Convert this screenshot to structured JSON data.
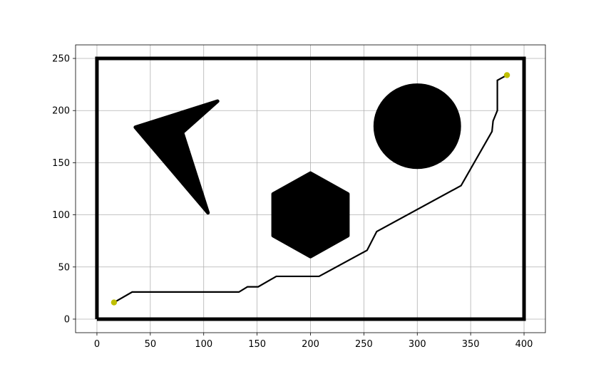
{
  "chart_data": {
    "type": "scatter",
    "title": "",
    "xlabel": "",
    "ylabel": "",
    "xlim": [
      -20,
      420
    ],
    "ylim": [
      -13,
      263
    ],
    "grid": true,
    "xticks": [
      0,
      50,
      100,
      150,
      200,
      250,
      300,
      350,
      400
    ],
    "yticks": [
      0,
      50,
      100,
      150,
      200,
      250
    ],
    "xtick_labels": [
      "0",
      "50",
      "100",
      "150",
      "200",
      "250",
      "300",
      "350",
      "400"
    ],
    "ytick_labels": [
      "0",
      "50",
      "100",
      "150",
      "200",
      "250"
    ],
    "colors": {
      "obstacle": "#000000",
      "path": "#000000",
      "endpoint": "#bfbf00",
      "grid": "#b0b0b0"
    },
    "boundary": {
      "name": "boundary",
      "points": [
        [
          0,
          0
        ],
        [
          400,
          0
        ],
        [
          400,
          250
        ],
        [
          0,
          250
        ],
        [
          0,
          0
        ]
      ]
    },
    "obstacles": [
      {
        "name": "arrowhead-obstacle",
        "shape": "polygon",
        "points": [
          [
            113,
            209
          ],
          [
            80,
            179
          ],
          [
            104,
            102
          ],
          [
            36,
            184
          ]
        ]
      },
      {
        "name": "hexagon-obstacle",
        "shape": "polygon",
        "points": [
          [
            200,
            140
          ],
          [
            235,
            120
          ],
          [
            235,
            80
          ],
          [
            200,
            60
          ],
          [
            165,
            80
          ],
          [
            165,
            120
          ]
        ]
      },
      {
        "name": "circle-obstacle",
        "shape": "circle",
        "center": [
          300,
          185
        ],
        "radius": 40
      }
    ],
    "path": {
      "name": "planned-path",
      "points": [
        [
          16,
          16
        ],
        [
          33,
          26
        ],
        [
          133,
          26
        ],
        [
          141,
          31
        ],
        [
          151,
          31
        ],
        [
          168,
          41
        ],
        [
          208,
          41
        ],
        [
          253,
          66
        ],
        [
          262,
          84
        ],
        [
          341,
          128
        ],
        [
          370,
          180
        ],
        [
          371,
          190
        ],
        [
          375,
          200
        ],
        [
          375,
          229
        ],
        [
          384,
          234
        ]
      ]
    },
    "start": {
      "name": "start-point",
      "x": 16,
      "y": 16
    },
    "goal": {
      "name": "goal-point",
      "x": 384,
      "y": 234
    }
  }
}
